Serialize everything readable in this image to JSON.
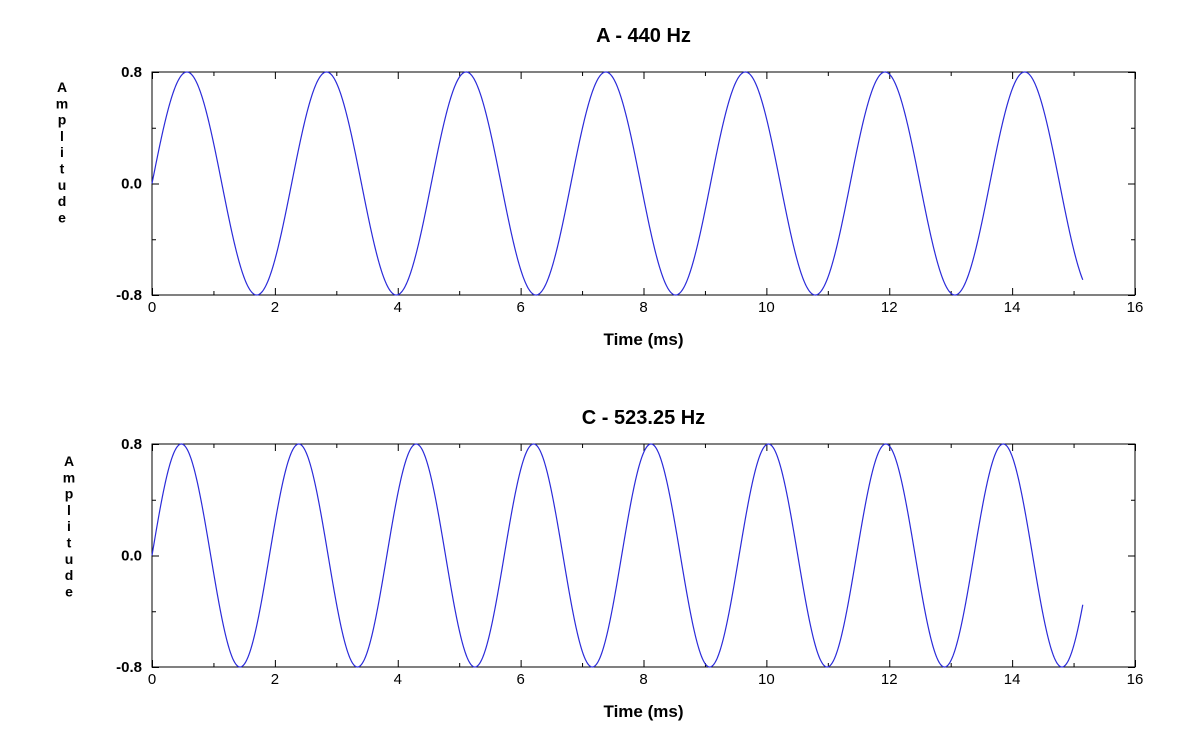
{
  "chart_data": [
    {
      "type": "line",
      "title": "A - 440 Hz",
      "xlabel": "Time (ms)",
      "ylabel": "Amplitude",
      "xlim": [
        0,
        16
      ],
      "ylim": [
        -0.8,
        0.8
      ],
      "x_ticks": [
        "0",
        "2",
        "4",
        "6",
        "8",
        "10",
        "12",
        "14",
        "16"
      ],
      "y_ticks": [
        "0.8",
        "0.0",
        "-0.8"
      ],
      "grid": false,
      "legend": "none",
      "color": "#2b2bd9",
      "series": [
        {
          "frequency_hz": 440,
          "amplitude": 0.8,
          "x_start": 0,
          "x_end": 15.15,
          "values_description": "sine"
        }
      ]
    },
    {
      "type": "line",
      "title": "C - 523.25 Hz",
      "xlabel": "Time (ms)",
      "ylabel": "Amplitude",
      "xlim": [
        0,
        16
      ],
      "ylim": [
        -0.8,
        0.8
      ],
      "x_ticks": [
        "0",
        "2",
        "4",
        "6",
        "8",
        "10",
        "12",
        "14",
        "16"
      ],
      "y_ticks": [
        "0.8",
        "0.0",
        "-0.8"
      ],
      "grid": false,
      "legend": "none",
      "color": "#2b2bd9",
      "series": [
        {
          "frequency_hz": 523.25,
          "amplitude": 0.8,
          "x_start": 0,
          "x_end": 15.15,
          "values_description": "sine"
        }
      ]
    }
  ]
}
